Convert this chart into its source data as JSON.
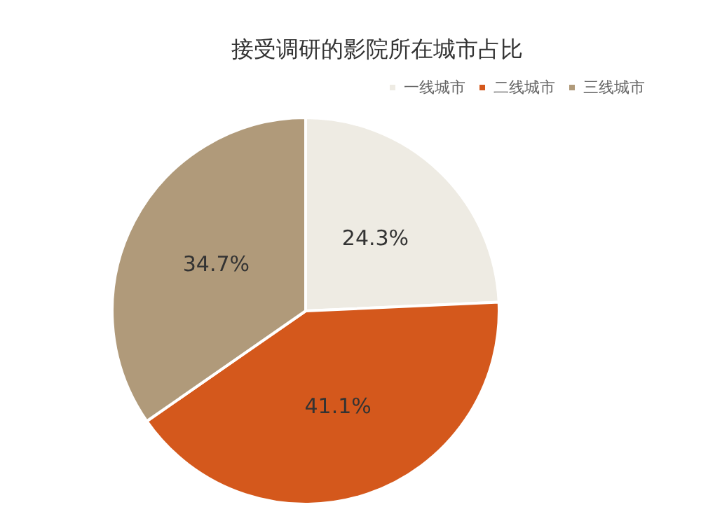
{
  "chart_data": {
    "type": "pie",
    "title": "接受调研的影院所在城市占比",
    "categories": [
      "一线城市",
      "二线城市",
      "三线城市"
    ],
    "values": [
      24.3,
      41.1,
      34.7
    ],
    "colors": [
      "#eeebe3",
      "#d4581c",
      "#b09a7a"
    ],
    "value_labels": [
      "24.3%",
      "41.1%",
      "34.7%"
    ],
    "legend": "top right"
  }
}
